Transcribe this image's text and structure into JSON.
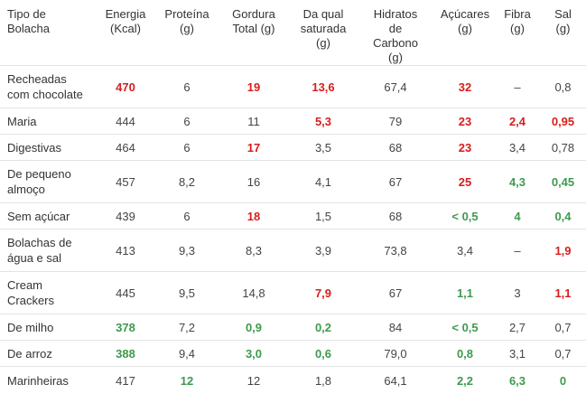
{
  "headers": [
    [
      "Tipo de",
      "Bolacha"
    ],
    [
      "Energia",
      "(Kcal)"
    ],
    [
      "Proteína",
      "(g)"
    ],
    [
      "Gordura",
      "Total (g)"
    ],
    [
      "Da qual",
      "saturada",
      "(g)"
    ],
    [
      "Hidratos",
      "de",
      "Carbono",
      "(g)"
    ],
    [
      "Açúcares",
      "(g)"
    ],
    [
      "Fibra",
      "(g)"
    ],
    [
      "Sal",
      "(g)"
    ]
  ],
  "rows": [
    {
      "name": [
        "Recheadas",
        "com chocolate"
      ],
      "cells": [
        {
          "v": "470",
          "c": "red"
        },
        {
          "v": "6",
          "c": ""
        },
        {
          "v": "19",
          "c": "red"
        },
        {
          "v": "13,6",
          "c": "red"
        },
        {
          "v": "67,4",
          "c": ""
        },
        {
          "v": "32",
          "c": "red"
        },
        {
          "v": "–",
          "c": ""
        },
        {
          "v": "0,8",
          "c": ""
        }
      ]
    },
    {
      "name": [
        "Maria"
      ],
      "cells": [
        {
          "v": "444",
          "c": ""
        },
        {
          "v": "6",
          "c": ""
        },
        {
          "v": "11",
          "c": ""
        },
        {
          "v": "5,3",
          "c": "red"
        },
        {
          "v": "79",
          "c": ""
        },
        {
          "v": "23",
          "c": "red"
        },
        {
          "v": "2,4",
          "c": "red"
        },
        {
          "v": "0,95",
          "c": "red"
        }
      ]
    },
    {
      "name": [
        "Digestivas"
      ],
      "cells": [
        {
          "v": "464",
          "c": ""
        },
        {
          "v": "6",
          "c": ""
        },
        {
          "v": "17",
          "c": "red"
        },
        {
          "v": "3,5",
          "c": ""
        },
        {
          "v": "68",
          "c": ""
        },
        {
          "v": "23",
          "c": "red"
        },
        {
          "v": "3,4",
          "c": ""
        },
        {
          "v": "0,78",
          "c": ""
        }
      ]
    },
    {
      "name": [
        "De pequeno",
        "almoço"
      ],
      "cells": [
        {
          "v": "457",
          "c": ""
        },
        {
          "v": "8,2",
          "c": ""
        },
        {
          "v": "16",
          "c": ""
        },
        {
          "v": "4,1",
          "c": ""
        },
        {
          "v": "67",
          "c": ""
        },
        {
          "v": "25",
          "c": "red"
        },
        {
          "v": "4,3",
          "c": "green"
        },
        {
          "v": "0,45",
          "c": "green"
        }
      ]
    },
    {
      "name": [
        "Sem açúcar"
      ],
      "cells": [
        {
          "v": "439",
          "c": ""
        },
        {
          "v": "6",
          "c": ""
        },
        {
          "v": "18",
          "c": "red"
        },
        {
          "v": "1,5",
          "c": ""
        },
        {
          "v": "68",
          "c": ""
        },
        {
          "v": "< 0,5",
          "c": "green"
        },
        {
          "v": "4",
          "c": "green"
        },
        {
          "v": "0,4",
          "c": "green"
        }
      ]
    },
    {
      "name": [
        "Bolachas de",
        "água e sal"
      ],
      "cells": [
        {
          "v": "413",
          "c": ""
        },
        {
          "v": "9,3",
          "c": ""
        },
        {
          "v": "8,3",
          "c": ""
        },
        {
          "v": "3,9",
          "c": ""
        },
        {
          "v": "73,8",
          "c": ""
        },
        {
          "v": "3,4",
          "c": ""
        },
        {
          "v": "–",
          "c": ""
        },
        {
          "v": "1,9",
          "c": "red"
        }
      ]
    },
    {
      "name": [
        "Cream",
        "Crackers"
      ],
      "cells": [
        {
          "v": "445",
          "c": ""
        },
        {
          "v": "9,5",
          "c": ""
        },
        {
          "v": "14,8",
          "c": ""
        },
        {
          "v": "7,9",
          "c": "red"
        },
        {
          "v": "67",
          "c": ""
        },
        {
          "v": "1,1",
          "c": "green"
        },
        {
          "v": "3",
          "c": ""
        },
        {
          "v": "1,1",
          "c": "red"
        }
      ]
    },
    {
      "name": [
        "De milho"
      ],
      "cells": [
        {
          "v": "378",
          "c": "green"
        },
        {
          "v": "7,2",
          "c": ""
        },
        {
          "v": "0,9",
          "c": "green"
        },
        {
          "v": "0,2",
          "c": "green"
        },
        {
          "v": "84",
          "c": ""
        },
        {
          "v": "< 0,5",
          "c": "green"
        },
        {
          "v": "2,7",
          "c": ""
        },
        {
          "v": "0,7",
          "c": ""
        }
      ]
    },
    {
      "name": [
        "De arroz"
      ],
      "cells": [
        {
          "v": "388",
          "c": "green"
        },
        {
          "v": "9,4",
          "c": ""
        },
        {
          "v": "3,0",
          "c": "green"
        },
        {
          "v": "0,6",
          "c": "green"
        },
        {
          "v": "79,0",
          "c": ""
        },
        {
          "v": "0,8",
          "c": "green"
        },
        {
          "v": "3,1",
          "c": ""
        },
        {
          "v": "0,7",
          "c": ""
        }
      ]
    },
    {
      "name": [
        "Marinheiras"
      ],
      "cells": [
        {
          "v": "417",
          "c": ""
        },
        {
          "v": "12",
          "c": "green"
        },
        {
          "v": "12",
          "c": ""
        },
        {
          "v": "1,8",
          "c": ""
        },
        {
          "v": "64,1",
          "c": ""
        },
        {
          "v": "2,2",
          "c": "green"
        },
        {
          "v": "6,3",
          "c": "green"
        },
        {
          "v": "0",
          "c": "green"
        }
      ]
    }
  ],
  "colors": {
    "high": "#d71e1e",
    "low": "#3d9a4e"
  }
}
